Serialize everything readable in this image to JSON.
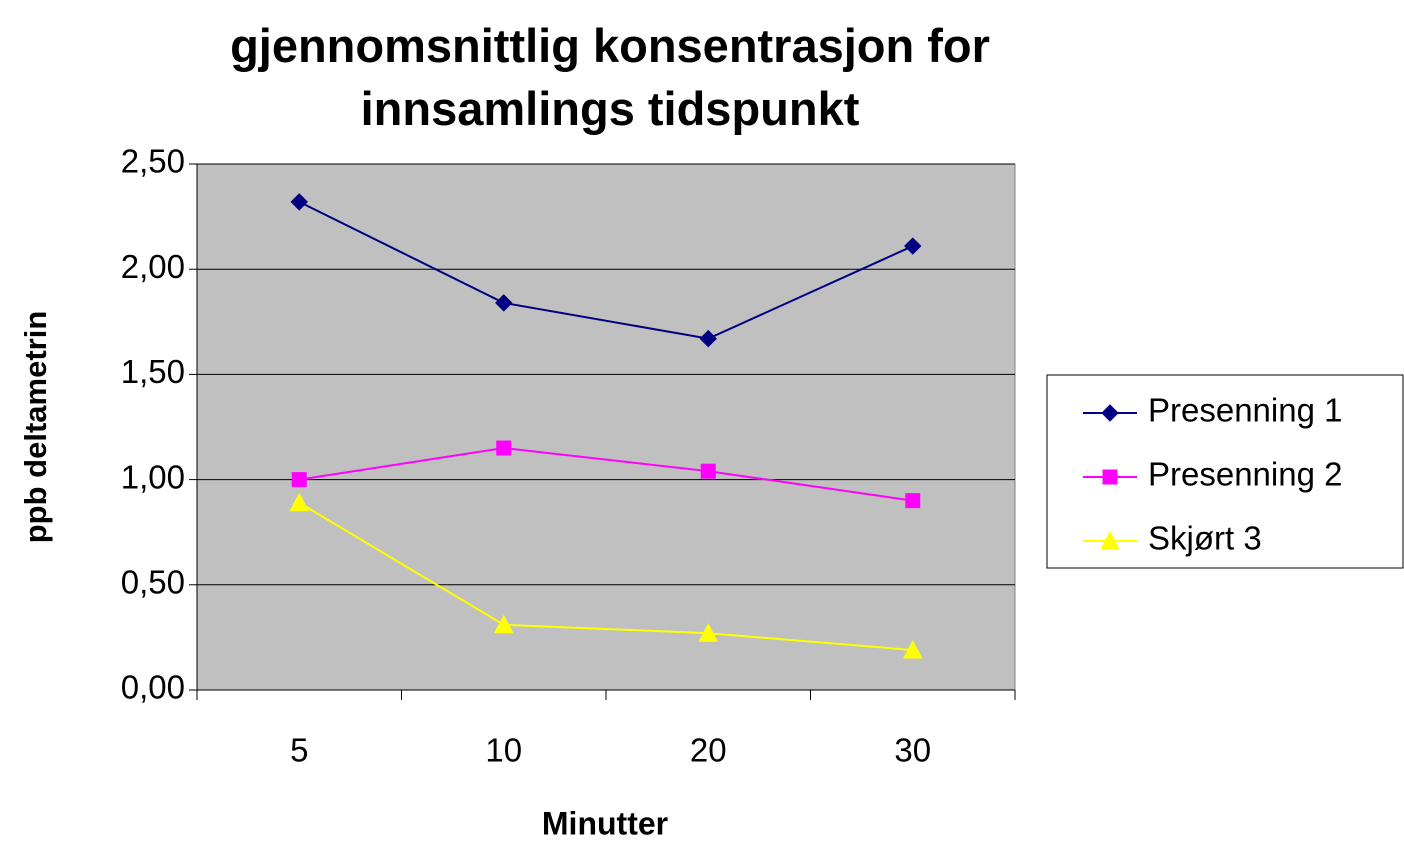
{
  "chart_data": {
    "type": "line",
    "title": "gjennomsnittlig konsentrasjon for innsamlings tidspunkt",
    "x_label": "Minutter",
    "y_label": "ppb deltametrin",
    "categories": [
      "5",
      "10",
      "20",
      "30"
    ],
    "series": [
      {
        "name": "Presenning 1",
        "color": "#000080",
        "marker": "diamond",
        "values": [
          2.32,
          1.84,
          1.67,
          2.11
        ]
      },
      {
        "name": "Presenning 2",
        "color": "#FF00FF",
        "marker": "square",
        "values": [
          1.0,
          1.15,
          1.04,
          0.9
        ]
      },
      {
        "name": "Skjørt 3",
        "color": "#FFFF00",
        "marker": "triangle",
        "values": [
          0.89,
          0.31,
          0.27,
          0.19
        ]
      }
    ],
    "ylim": [
      0,
      2.5
    ],
    "yticks": [
      {
        "value": 0,
        "label": "0,00"
      },
      {
        "value": 0.5,
        "label": "0,50"
      },
      {
        "value": 1,
        "label": "1,00"
      },
      {
        "value": 1.5,
        "label": "1,50"
      },
      {
        "value": 2,
        "label": "2,00"
      },
      {
        "value": 2.5,
        "label": "2,50"
      }
    ],
    "grid": true,
    "plot_background": "#C0C0C0",
    "legend": "right"
  }
}
